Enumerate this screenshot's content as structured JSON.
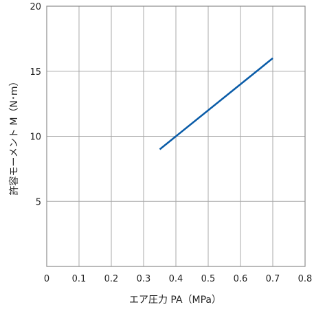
{
  "chart_data": {
    "type": "line",
    "xlabel": "エア圧力 PA（MPa）",
    "ylabel": "許容モーメント M（N･m）",
    "xlim": [
      0,
      0.8
    ],
    "ylim": [
      0,
      20
    ],
    "x_ticks": [
      "0",
      "0.1",
      "0.2",
      "0.3",
      "0.4",
      "0.5",
      "0.6",
      "0.7",
      "0.8"
    ],
    "x_tick_values": [
      0,
      0.1,
      0.2,
      0.3,
      0.4,
      0.5,
      0.6,
      0.7,
      0.8
    ],
    "y_ticks": [
      "5",
      "10",
      "15",
      "20"
    ],
    "y_tick_values": [
      5,
      10,
      15,
      20
    ],
    "grid": true,
    "series": [
      {
        "x": [
          0.35,
          0.7
        ],
        "y": [
          9,
          16
        ]
      }
    ],
    "colors": {
      "line": "#0a5ca8",
      "grid": "#a8a8a8",
      "frame": "#8c8c8c"
    }
  }
}
